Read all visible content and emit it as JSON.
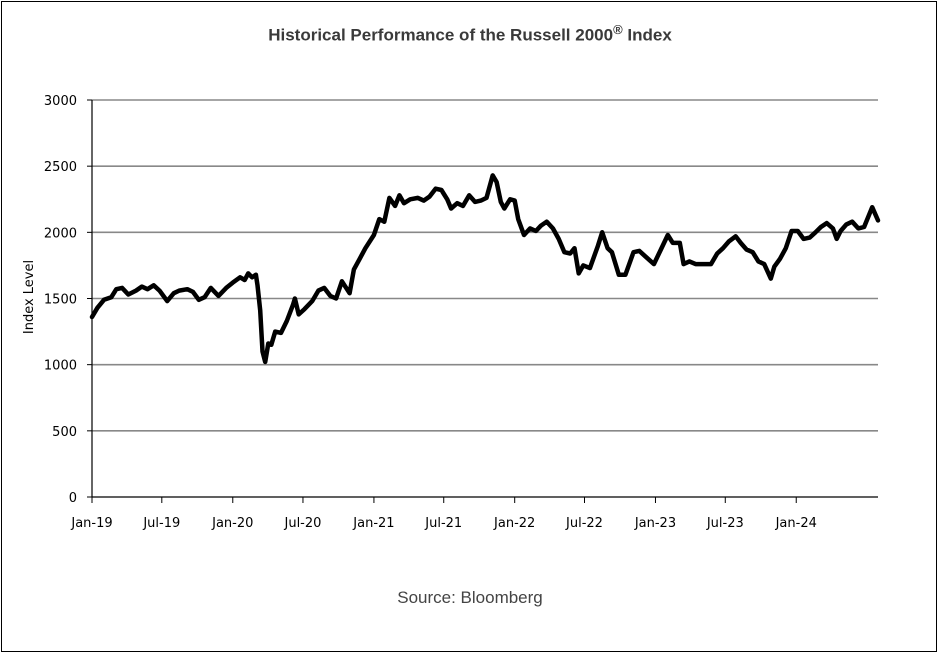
{
  "chart_data": {
    "type": "line",
    "title_main": "Historical Performance of the Russell 2000",
    "title_mark": "®",
    "title_suffix": " Index",
    "source": "Source: Bloomberg",
    "ylabel": "Index Level",
    "ylim": [
      0,
      3000
    ],
    "yticks": [
      0,
      500,
      1000,
      1500,
      2000,
      2500,
      3000
    ],
    "xlim": [
      "2019-01-01",
      "2024-07-31"
    ],
    "xticks": [
      {
        "date": "2019-01-01",
        "label": "Jan-19"
      },
      {
        "date": "2019-07-01",
        "label": "Jul-19"
      },
      {
        "date": "2020-01-01",
        "label": "Jan-20"
      },
      {
        "date": "2020-07-01",
        "label": "Jul-20"
      },
      {
        "date": "2021-01-01",
        "label": "Jan-21"
      },
      {
        "date": "2021-07-01",
        "label": "Jul-21"
      },
      {
        "date": "2022-01-01",
        "label": "Jan-22"
      },
      {
        "date": "2022-07-01",
        "label": "Jul-22"
      },
      {
        "date": "2023-01-01",
        "label": "Jan-23"
      },
      {
        "date": "2023-07-01",
        "label": "Jul-23"
      },
      {
        "date": "2024-01-01",
        "label": "Jan-24"
      }
    ],
    "grid": true,
    "series": [
      {
        "points": [
          [
            "2019-01-01",
            1360
          ],
          [
            "2019-01-15",
            1430
          ],
          [
            "2019-02-01",
            1490
          ],
          [
            "2019-02-20",
            1510
          ],
          [
            "2019-03-05",
            1570
          ],
          [
            "2019-03-20",
            1580
          ],
          [
            "2019-04-05",
            1530
          ],
          [
            "2019-04-25",
            1560
          ],
          [
            "2019-05-10",
            1590
          ],
          [
            "2019-05-25",
            1570
          ],
          [
            "2019-06-10",
            1600
          ],
          [
            "2019-06-25",
            1560
          ],
          [
            "2019-07-15",
            1480
          ],
          [
            "2019-08-01",
            1540
          ],
          [
            "2019-08-15",
            1560
          ],
          [
            "2019-09-05",
            1570
          ],
          [
            "2019-09-20",
            1550
          ],
          [
            "2019-10-05",
            1490
          ],
          [
            "2019-10-20",
            1510
          ],
          [
            "2019-11-05",
            1580
          ],
          [
            "2019-11-25",
            1520
          ],
          [
            "2019-12-15",
            1580
          ],
          [
            "2020-01-01",
            1620
          ],
          [
            "2020-01-20",
            1660
          ],
          [
            "2020-02-01",
            1640
          ],
          [
            "2020-02-10",
            1690
          ],
          [
            "2020-02-20",
            1660
          ],
          [
            "2020-03-01",
            1680
          ],
          [
            "2020-03-05",
            1600
          ],
          [
            "2020-03-12",
            1410
          ],
          [
            "2020-03-18",
            1100
          ],
          [
            "2020-03-25",
            1020
          ],
          [
            "2020-04-02",
            1160
          ],
          [
            "2020-04-10",
            1150
          ],
          [
            "2020-04-20",
            1250
          ],
          [
            "2020-05-05",
            1240
          ],
          [
            "2020-05-20",
            1330
          ],
          [
            "2020-06-05",
            1450
          ],
          [
            "2020-06-10",
            1500
          ],
          [
            "2020-06-20",
            1380
          ],
          [
            "2020-07-05",
            1420
          ],
          [
            "2020-07-25",
            1480
          ],
          [
            "2020-08-10",
            1560
          ],
          [
            "2020-08-25",
            1580
          ],
          [
            "2020-09-10",
            1520
          ],
          [
            "2020-09-25",
            1500
          ],
          [
            "2020-10-10",
            1630
          ],
          [
            "2020-10-30",
            1540
          ],
          [
            "2020-11-10",
            1720
          ],
          [
            "2020-11-25",
            1800
          ],
          [
            "2020-12-10",
            1880
          ],
          [
            "2021-01-01",
            1980
          ],
          [
            "2021-01-15",
            2100
          ],
          [
            "2021-01-28",
            2080
          ],
          [
            "2021-02-10",
            2260
          ],
          [
            "2021-02-25",
            2200
          ],
          [
            "2021-03-08",
            2280
          ],
          [
            "2021-03-20",
            2220
          ],
          [
            "2021-04-05",
            2250
          ],
          [
            "2021-04-25",
            2260
          ],
          [
            "2021-05-10",
            2240
          ],
          [
            "2021-05-25",
            2270
          ],
          [
            "2021-06-10",
            2330
          ],
          [
            "2021-06-25",
            2320
          ],
          [
            "2021-07-10",
            2250
          ],
          [
            "2021-07-20",
            2180
          ],
          [
            "2021-08-05",
            2220
          ],
          [
            "2021-08-20",
            2200
          ],
          [
            "2021-09-05",
            2280
          ],
          [
            "2021-09-20",
            2230
          ],
          [
            "2021-10-05",
            2240
          ],
          [
            "2021-10-20",
            2260
          ],
          [
            "2021-11-05",
            2430
          ],
          [
            "2021-11-15",
            2380
          ],
          [
            "2021-11-26",
            2230
          ],
          [
            "2021-12-05",
            2180
          ],
          [
            "2021-12-20",
            2250
          ],
          [
            "2022-01-01",
            2240
          ],
          [
            "2022-01-10",
            2100
          ],
          [
            "2022-01-25",
            1980
          ],
          [
            "2022-02-10",
            2030
          ],
          [
            "2022-02-25",
            2010
          ],
          [
            "2022-03-10",
            2050
          ],
          [
            "2022-03-25",
            2080
          ],
          [
            "2022-04-10",
            2030
          ],
          [
            "2022-04-25",
            1950
          ],
          [
            "2022-05-10",
            1850
          ],
          [
            "2022-05-25",
            1840
          ],
          [
            "2022-06-05",
            1880
          ],
          [
            "2022-06-16",
            1690
          ],
          [
            "2022-06-28",
            1750
          ],
          [
            "2022-07-15",
            1730
          ],
          [
            "2022-08-05",
            1900
          ],
          [
            "2022-08-16",
            2000
          ],
          [
            "2022-08-30",
            1880
          ],
          [
            "2022-09-10",
            1850
          ],
          [
            "2022-09-28",
            1680
          ],
          [
            "2022-10-15",
            1680
          ],
          [
            "2022-11-05",
            1850
          ],
          [
            "2022-11-20",
            1860
          ],
          [
            "2022-12-05",
            1820
          ],
          [
            "2022-12-28",
            1760
          ],
          [
            "2023-01-15",
            1870
          ],
          [
            "2023-02-02",
            1980
          ],
          [
            "2023-02-15",
            1920
          ],
          [
            "2023-03-05",
            1920
          ],
          [
            "2023-03-15",
            1760
          ],
          [
            "2023-03-30",
            1780
          ],
          [
            "2023-04-15",
            1760
          ],
          [
            "2023-05-05",
            1760
          ],
          [
            "2023-05-25",
            1760
          ],
          [
            "2023-06-10",
            1840
          ],
          [
            "2023-06-25",
            1880
          ],
          [
            "2023-07-10",
            1930
          ],
          [
            "2023-07-28",
            1970
          ],
          [
            "2023-08-10",
            1920
          ],
          [
            "2023-08-25",
            1870
          ],
          [
            "2023-09-10",
            1850
          ],
          [
            "2023-09-25",
            1780
          ],
          [
            "2023-10-10",
            1760
          ],
          [
            "2023-10-27",
            1650
          ],
          [
            "2023-11-05",
            1740
          ],
          [
            "2023-11-20",
            1800
          ],
          [
            "2023-12-05",
            1880
          ],
          [
            "2023-12-20",
            2010
          ],
          [
            "2024-01-05",
            2010
          ],
          [
            "2024-01-20",
            1950
          ],
          [
            "2024-02-05",
            1960
          ],
          [
            "2024-02-20",
            2000
          ],
          [
            "2024-03-05",
            2040
          ],
          [
            "2024-03-20",
            2070
          ],
          [
            "2024-04-05",
            2030
          ],
          [
            "2024-04-15",
            1950
          ],
          [
            "2024-04-25",
            2010
          ],
          [
            "2024-05-10",
            2060
          ],
          [
            "2024-05-25",
            2080
          ],
          [
            "2024-06-10",
            2030
          ],
          [
            "2024-06-25",
            2040
          ],
          [
            "2024-07-16",
            2190
          ],
          [
            "2024-07-31",
            2090
          ]
        ]
      }
    ]
  }
}
